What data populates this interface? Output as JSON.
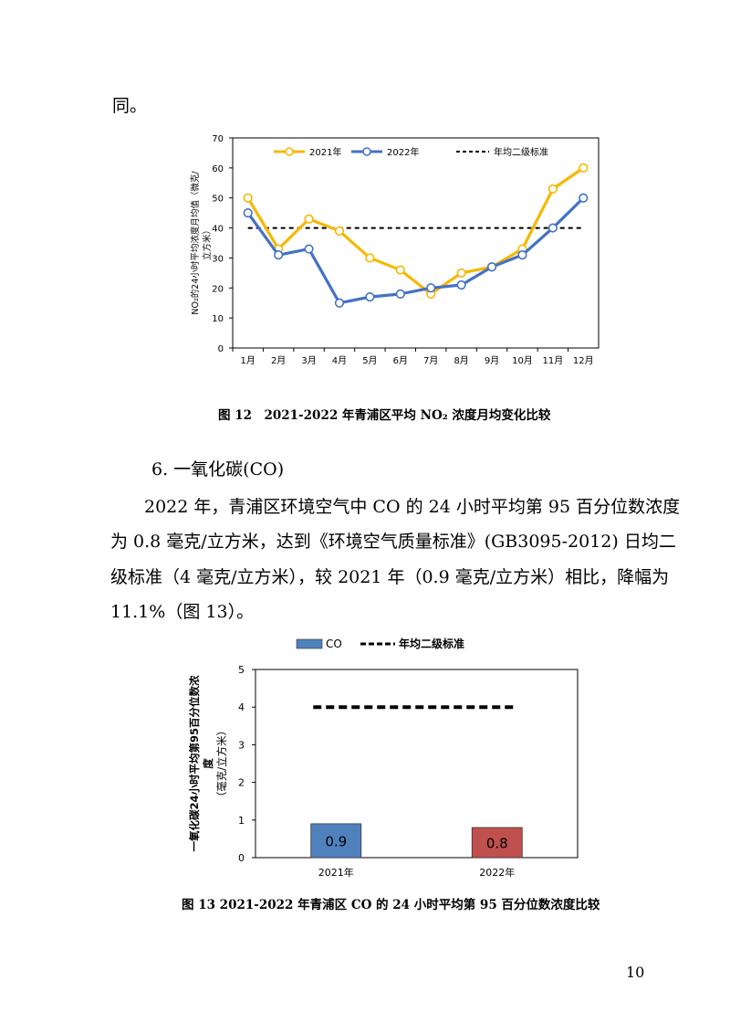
{
  "page": {
    "top_fragment": "同。",
    "section_heading": "6. 一氧化碳(CO)",
    "paragraph_lines": [
      "2022 年，青浦区环境空气中 CO 的 24 小时平均第 95 百分位数浓度",
      "为 0.8 毫克/立方米，达到《环境空气质量标准》(GB3095-2012) 日均二",
      "级标准（4 毫克/立方米），较 2021 年（0.9 毫克/立方米）相比，降幅为",
      "11.1%（图 13）。"
    ],
    "page_number": "10"
  },
  "figure12": {
    "caption": "图 12　2021-2022 年青浦区平均 NO₂ 浓度月均变化比较",
    "chart_data": {
      "type": "line",
      "categories": [
        "1月",
        "2月",
        "3月",
        "4月",
        "5月",
        "6月",
        "7月",
        "8月",
        "9月",
        "10月",
        "11月",
        "12月"
      ],
      "series": [
        {
          "name": "2021年",
          "values": [
            50,
            33,
            43,
            39,
            30,
            26,
            18,
            25,
            27,
            33,
            53,
            60
          ],
          "color": "#F5B800"
        },
        {
          "name": "2022年",
          "values": [
            45,
            31,
            33,
            15,
            17,
            18,
            20,
            21,
            27,
            31,
            40,
            50
          ],
          "color": "#4472C4"
        }
      ],
      "reference_line": {
        "name": "年均二级标准",
        "value": 40
      },
      "ylabel": "NO₂的24小时平均浓度月均值（微克/立方米）",
      "ylim": [
        0,
        70
      ],
      "yticks": [
        0,
        10,
        20,
        30,
        40,
        50,
        60,
        70
      ],
      "legend_position": "top"
    }
  },
  "figure13": {
    "caption": "图 13 2021-2022 年青浦区 CO 的 24 小时平均第 95 百分位数浓度比较",
    "chart_data": {
      "type": "bar",
      "categories": [
        "2021年",
        "2022年"
      ],
      "series": [
        {
          "name": "CO",
          "values": [
            0.9,
            0.8
          ],
          "labels": [
            "0.9",
            "0.8"
          ]
        }
      ],
      "bar_colors": [
        "#4F81BD",
        "#C0504D"
      ],
      "reference_line": {
        "name": "年均二级标准",
        "value": 4
      },
      "ylabel": "一氧化碳24小时平均第95百分位数浓度（毫克/立方米）",
      "ylim": [
        0,
        5
      ],
      "yticks": [
        0,
        1,
        2,
        3,
        4,
        5
      ],
      "legend_position": "top"
    }
  }
}
